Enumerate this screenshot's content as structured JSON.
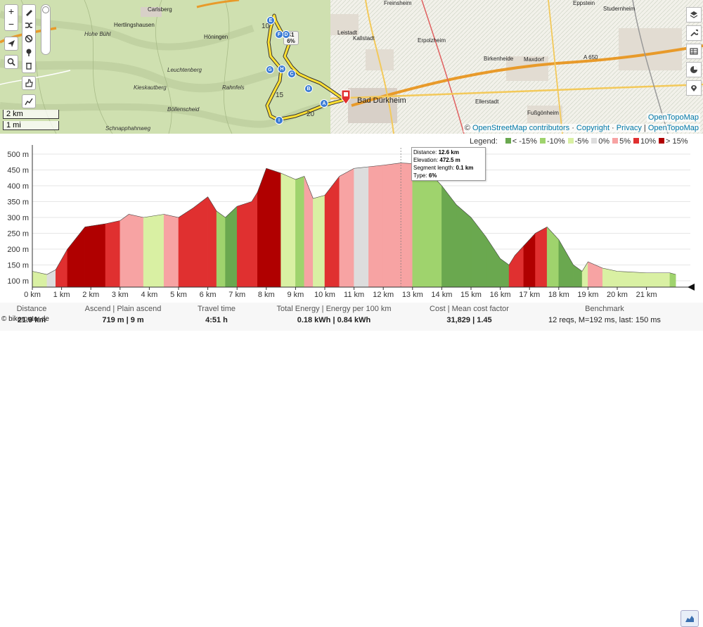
{
  "map": {
    "places": [
      "Carlsberg",
      "Hertlingshausen",
      "Höningen",
      "Hohe Bühl",
      "Leuchtenberg",
      "Kieskautberg",
      "Rahnfels",
      "Böllenscheid",
      "Schnapphahnweg",
      "Leistadt",
      "Kallstadt",
      "Erpolzheim",
      "Birkenheide",
      "Maxdorf",
      "Bad Dürkheim",
      "Ellerstadt",
      "Fußgönheim",
      "Freinsheim",
      "Eppstein",
      "Studernheim",
      "A 650"
    ],
    "markers": [
      "A",
      "B",
      "C",
      "D",
      "E",
      "F",
      "G",
      "H",
      "I"
    ],
    "km_markers": [
      "10",
      "15",
      "20"
    ],
    "popup": {
      "line1": "41",
      "line2": "6%"
    },
    "scale": {
      "km": "2 km",
      "mi": "1 mi"
    },
    "attribution": {
      "prefix": "© ",
      "osm": "OpenStreetMap contributors",
      "copyright": "Copyright",
      "privacy": "Privacy",
      "tiles": "OpenTopoMap"
    },
    "tiles_label": "OpenTopoMap",
    "zoom_in": "+",
    "zoom_out": "−"
  },
  "legend": {
    "title": "Legend:",
    "items": [
      {
        "label": "< -15%",
        "color": "#6aa84f"
      },
      {
        "label": "-10%",
        "color": "#9fd36d"
      },
      {
        "label": "-5%",
        "color": "#d9f0a3"
      },
      {
        "label": "0%",
        "color": "#dddddd"
      },
      {
        "label": "5%",
        "color": "#f7a3a3"
      },
      {
        "label": "10%",
        "color": "#e03030"
      },
      {
        "label": "> 15%",
        "color": "#b00000"
      }
    ]
  },
  "tooltip": {
    "distance_label": "Distance:",
    "distance": "12.6 km",
    "elevation_label": "Elevation:",
    "elevation": "472.5 m",
    "segment_label": "Segment length:",
    "segment": "0.1 km",
    "type_label": "Type:",
    "type": "6%"
  },
  "chart_data": {
    "type": "area",
    "xlabel": "",
    "ylabel": "",
    "xlim": [
      0,
      22.5
    ],
    "ylim": [
      80,
      520
    ],
    "x_ticks": [
      "0 km",
      "1 km",
      "2 km",
      "3 km",
      "4 km",
      "5 km",
      "6 km",
      "7 km",
      "8 km",
      "9 km",
      "10 km",
      "11 km",
      "12 km",
      "13 km",
      "14 km",
      "15 km",
      "16 km",
      "17 km",
      "18 km",
      "19 km",
      "20 km",
      "21 km"
    ],
    "y_ticks": [
      "100 m",
      "150 m",
      "200 m",
      "250 m",
      "300 m",
      "350 m",
      "400 m",
      "450 m",
      "500 m"
    ],
    "x": [
      0,
      0.5,
      0.8,
      1.2,
      1.8,
      2.5,
      3.0,
      3.3,
      3.8,
      4.5,
      5.0,
      5.5,
      6.0,
      6.3,
      6.6,
      7.0,
      7.5,
      7.7,
      8.0,
      8.5,
      9.0,
      9.3,
      9.6,
      10.0,
      10.5,
      11.0,
      11.5,
      12.0,
      12.6,
      13.0,
      13.5,
      14.0,
      14.5,
      15.0,
      15.5,
      16.0,
      16.3,
      16.5,
      16.8,
      17.2,
      17.6,
      18.0,
      18.5,
      18.8,
      19.0,
      19.5,
      20.0,
      21.0,
      21.8,
      22.0
    ],
    "elevation": [
      130,
      120,
      135,
      200,
      270,
      280,
      290,
      310,
      300,
      310,
      300,
      330,
      365,
      320,
      300,
      335,
      350,
      380,
      455,
      440,
      420,
      430,
      360,
      370,
      430,
      455,
      460,
      465,
      472,
      470,
      450,
      400,
      340,
      300,
      240,
      170,
      150,
      180,
      210,
      250,
      270,
      230,
      150,
      130,
      160,
      140,
      130,
      125,
      125,
      120
    ],
    "grade_colors": [
      "#d9f0a3",
      "#dddddd",
      "#e03030",
      "#b00000",
      "#b00000",
      "#e03030",
      "#f7a3a3",
      "#f7a3a3",
      "#d9f0a3",
      "#f7a3a3",
      "#e03030",
      "#e03030",
      "#e03030",
      "#9fd36d",
      "#6aa84f",
      "#e03030",
      "#e03030",
      "#b00000",
      "#b00000",
      "#d9f0a3",
      "#9fd36d",
      "#f7a3a3",
      "#d9f0a3",
      "#e03030",
      "#f7a3a3",
      "#dddddd",
      "#f7a3a3",
      "#f7a3a3",
      "#f7a3a3",
      "#9fd36d",
      "#9fd36d",
      "#6aa84f",
      "#6aa84f",
      "#6aa84f",
      "#6aa84f",
      "#6aa84f",
      "#e03030",
      "#e03030",
      "#b00000",
      "#e03030",
      "#9fd36d",
      "#6aa84f",
      "#6aa84f",
      "#d9f0a3",
      "#f7a3a3",
      "#d9f0a3",
      "#d9f0a3",
      "#d9f0a3",
      "#9fd36d",
      "#d9f0a3"
    ]
  },
  "stats": {
    "distance": {
      "label": "Distance",
      "value": "21.9 km"
    },
    "ascend": {
      "label1": "Ascend",
      "label2": "Plain ascend",
      "value": "719 m | 9 m"
    },
    "travel": {
      "label": "Travel time",
      "value": "4:51 h"
    },
    "energy": {
      "label1": "Total Energy",
      "label2": "Energy per 100 km",
      "value": "0.18 kWh | 0.84 kWh"
    },
    "cost": {
      "label1": "Cost",
      "label2": "Mean cost factor",
      "value": "31,829 | 1.45"
    },
    "bench": {
      "label": "Benchmark",
      "value": "12 reqs, M=192 ms, last: 150 ms"
    }
  },
  "copyright": "© bikerouter.de"
}
